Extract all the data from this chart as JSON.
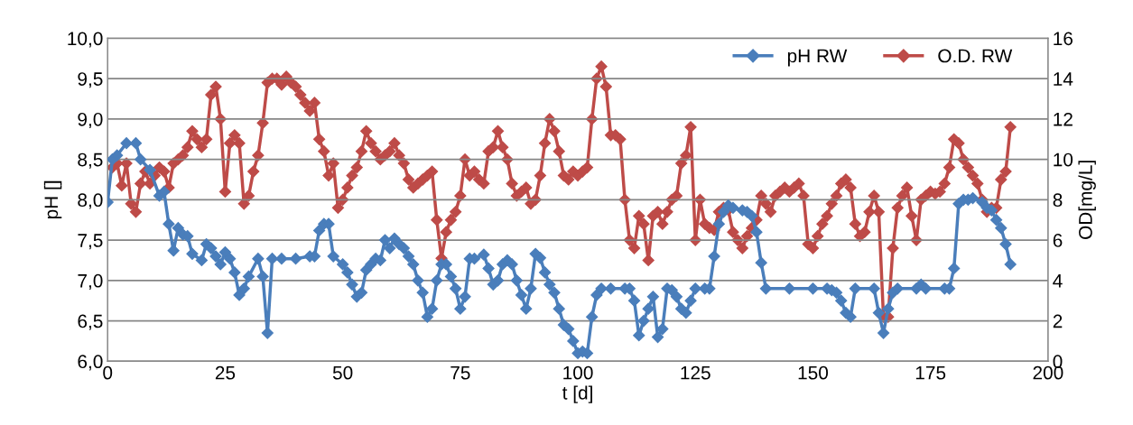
{
  "chart_data": {
    "type": "line",
    "xlabel": "t [d]",
    "ylabel": "pH []",
    "y2label": "OD[mg/L]",
    "xlim": [
      0,
      200
    ],
    "xticks": [
      0,
      25,
      50,
      75,
      100,
      125,
      150,
      175,
      200
    ],
    "ylim": [
      6.0,
      10.0
    ],
    "yticks": [
      {
        "value": 6.0,
        "label": "6,0"
      },
      {
        "value": 6.5,
        "label": "6,5"
      },
      {
        "value": 7.0,
        "label": "7,0"
      },
      {
        "value": 7.5,
        "label": "7,5"
      },
      {
        "value": 8.0,
        "label": "8,0"
      },
      {
        "value": 8.5,
        "label": "8,5"
      },
      {
        "value": 9.0,
        "label": "9,0"
      },
      {
        "value": 9.5,
        "label": "9,5"
      },
      {
        "value": 10.0,
        "label": "10,0"
      }
    ],
    "y2lim": [
      0,
      16
    ],
    "y2ticks": [
      0,
      2,
      4,
      6,
      8,
      10,
      12,
      14,
      16
    ],
    "grid": "y",
    "legend": "top right",
    "marker": "diamond",
    "line_style": "solid",
    "series": [
      {
        "name": "pH RW",
        "color": "#4a7ebb",
        "x": [
          0,
          1,
          2,
          4,
          6,
          7,
          9,
          11,
          12,
          13,
          14,
          15,
          16,
          17,
          18,
          20,
          21,
          22,
          23,
          24,
          25,
          26,
          27,
          28,
          29,
          30,
          32,
          33,
          34,
          35,
          37,
          40,
          43,
          44,
          45,
          46,
          47,
          48,
          50,
          51,
          52,
          53,
          54,
          55,
          56,
          57,
          58,
          59,
          60,
          61,
          62,
          63,
          64,
          65,
          66,
          67,
          68,
          69,
          70,
          71,
          72,
          73,
          74,
          75,
          76,
          77,
          78,
          80,
          81,
          82,
          83,
          84,
          85,
          86,
          87,
          88,
          89,
          90,
          91,
          92,
          93,
          94,
          95,
          96,
          97,
          98,
          99,
          100,
          101,
          102,
          103,
          104,
          105,
          107,
          110,
          111,
          112,
          113,
          114,
          115,
          116,
          117,
          118,
          119,
          120,
          121,
          122,
          123,
          124,
          125,
          127,
          128,
          129,
          130,
          131,
          132,
          133,
          135,
          136,
          137,
          138,
          139,
          140,
          145,
          150,
          153,
          154,
          155,
          156,
          157,
          158,
          159,
          163,
          164,
          165,
          166,
          167,
          168,
          172,
          173,
          174,
          178,
          179,
          180,
          181,
          182,
          183,
          184,
          186,
          187,
          188,
          189,
          190,
          191,
          192
        ],
        "values": [
          7.97,
          8.5,
          8.55,
          8.7,
          8.7,
          8.5,
          8.37,
          8.05,
          8.1,
          7.7,
          7.37,
          7.65,
          7.57,
          7.55,
          7.33,
          7.25,
          7.45,
          7.4,
          7.3,
          7.2,
          7.35,
          7.27,
          7.1,
          6.82,
          6.9,
          7.05,
          7.27,
          7.05,
          6.35,
          7.27,
          7.27,
          7.27,
          7.3,
          7.3,
          7.62,
          7.7,
          7.7,
          7.3,
          7.2,
          7.1,
          6.95,
          6.8,
          6.85,
          7.13,
          7.2,
          7.27,
          7.25,
          7.5,
          7.4,
          7.52,
          7.45,
          7.4,
          7.3,
          7.2,
          7.0,
          6.85,
          6.55,
          6.65,
          7.0,
          7.2,
          7.2,
          7.05,
          6.9,
          6.65,
          6.8,
          7.27,
          7.27,
          7.32,
          7.15,
          6.95,
          7.0,
          7.2,
          7.25,
          7.2,
          7.0,
          6.82,
          6.65,
          6.9,
          7.33,
          7.28,
          7.1,
          6.95,
          6.85,
          6.65,
          6.45,
          6.4,
          6.25,
          6.1,
          6.12,
          6.1,
          6.55,
          6.82,
          6.9,
          6.9,
          6.9,
          6.9,
          6.75,
          6.32,
          6.5,
          6.65,
          6.8,
          6.3,
          6.4,
          6.9,
          6.88,
          6.8,
          6.65,
          6.6,
          6.75,
          6.9,
          6.9,
          6.9,
          7.3,
          7.7,
          7.85,
          7.93,
          7.9,
          7.87,
          7.85,
          7.8,
          7.6,
          7.22,
          6.9,
          6.9,
          6.9,
          6.9,
          6.88,
          6.85,
          6.75,
          6.6,
          6.55,
          6.9,
          6.9,
          6.6,
          6.35,
          6.65,
          6.85,
          6.9,
          6.9,
          6.95,
          6.9,
          6.9,
          6.9,
          7.15,
          7.95,
          8.0,
          8.0,
          8.02,
          7.97,
          7.9,
          7.87,
          7.75,
          7.65,
          7.45,
          7.2
        ]
      },
      {
        "name": "O.D. RW",
        "color": "#be4b48",
        "axis": "y2",
        "x": [
          1,
          2,
          3,
          4,
          5,
          6,
          7,
          8,
          9,
          10,
          11,
          12,
          13,
          14,
          15,
          16,
          17,
          18,
          19,
          20,
          21,
          22,
          23,
          24,
          25,
          26,
          27,
          28,
          29,
          30,
          31,
          32,
          33,
          34,
          35,
          36,
          37,
          38,
          39,
          40,
          41,
          42,
          43,
          44,
          45,
          46,
          47,
          48,
          49,
          50,
          51,
          52,
          53,
          54,
          55,
          56,
          57,
          58,
          59,
          60,
          61,
          62,
          63,
          64,
          65,
          66,
          67,
          68,
          69,
          70,
          71,
          72,
          73,
          74,
          75,
          76,
          77,
          78,
          79,
          80,
          81,
          82,
          83,
          84,
          85,
          86,
          87,
          88,
          89,
          90,
          91,
          92,
          93,
          94,
          95,
          96,
          97,
          98,
          99,
          100,
          101,
          102,
          103,
          104,
          105,
          106,
          107,
          108,
          109,
          110,
          111,
          112,
          113,
          114,
          115,
          116,
          117,
          118,
          119,
          120,
          121,
          122,
          123,
          124,
          125,
          126,
          127,
          128,
          129,
          130,
          131,
          132,
          133,
          134,
          135,
          136,
          137,
          138,
          139,
          140,
          141,
          142,
          143,
          144,
          145,
          146,
          147,
          148,
          149,
          150,
          151,
          152,
          153,
          154,
          155,
          156,
          157,
          158,
          159,
          160,
          161,
          162,
          163,
          164,
          165,
          166,
          167,
          168,
          169,
          170,
          171,
          172,
          173,
          174,
          175,
          176,
          177,
          178,
          179,
          180,
          181,
          182,
          183,
          184,
          185,
          186,
          187,
          188,
          189,
          190,
          191,
          192
        ],
        "values": [
          9.6,
          9.8,
          8.7,
          9.8,
          7.8,
          7.4,
          8.8,
          9.4,
          8.8,
          9.2,
          9.6,
          9.4,
          8.6,
          9.8,
          10.0,
          10.2,
          10.6,
          11.4,
          11.0,
          10.6,
          11.0,
          13.2,
          13.6,
          12.0,
          8.4,
          10.8,
          11.2,
          10.8,
          7.8,
          8.2,
          9.4,
          10.2,
          11.8,
          13.8,
          14.0,
          14.0,
          13.7,
          14.1,
          13.8,
          13.6,
          13.2,
          12.8,
          12.4,
          12.8,
          11.0,
          10.4,
          9.2,
          9.8,
          7.6,
          8.0,
          8.6,
          9.2,
          9.6,
          10.4,
          11.4,
          10.8,
          10.4,
          10.0,
          10.2,
          10.4,
          10.8,
          10.2,
          9.8,
          9.0,
          8.6,
          8.8,
          9.0,
          9.2,
          9.4,
          7.0,
          5.1,
          6.4,
          7.0,
          7.4,
          8.2,
          10.0,
          9.2,
          9.4,
          9.0,
          8.8,
          10.4,
          10.6,
          11.4,
          10.6,
          10.0,
          8.8,
          8.2,
          8.4,
          8.6,
          7.8,
          8.0,
          9.2,
          10.8,
          12.0,
          11.4,
          10.4,
          9.2,
          9.0,
          9.4,
          9.2,
          9.4,
          9.6,
          12.0,
          14.0,
          14.6,
          13.6,
          11.2,
          11.2,
          11.0,
          8.0,
          6.0,
          5.6,
          7.2,
          6.8,
          5.0,
          7.2,
          7.4,
          6.8,
          7.4,
          8.0,
          8.2,
          9.8,
          10.2,
          11.6,
          6.0,
          8.0,
          6.8,
          6.6,
          6.5,
          7.4,
          7.6,
          7.5,
          6.4,
          6.0,
          5.6,
          6.2,
          6.6,
          7.0,
          8.2,
          7.8,
          7.4,
          8.2,
          8.4,
          8.6,
          8.4,
          8.6,
          8.8,
          8.2,
          5.8,
          5.6,
          6.2,
          6.8,
          7.2,
          7.8,
          8.2,
          8.8,
          9.0,
          8.6,
          6.8,
          6.2,
          6.4,
          7.4,
          8.2,
          7.4,
          2.2,
          2.2,
          5.6,
          7.6,
          8.2,
          8.6,
          7.2,
          6.0,
          8.0,
          8.2,
          8.4,
          8.3,
          8.4,
          8.8,
          9.6,
          11.0,
          10.8,
          10.0,
          9.6,
          9.2,
          8.8,
          8.0,
          7.4,
          7.6,
          7.6,
          9.0,
          9.4,
          11.6
        ]
      }
    ]
  }
}
